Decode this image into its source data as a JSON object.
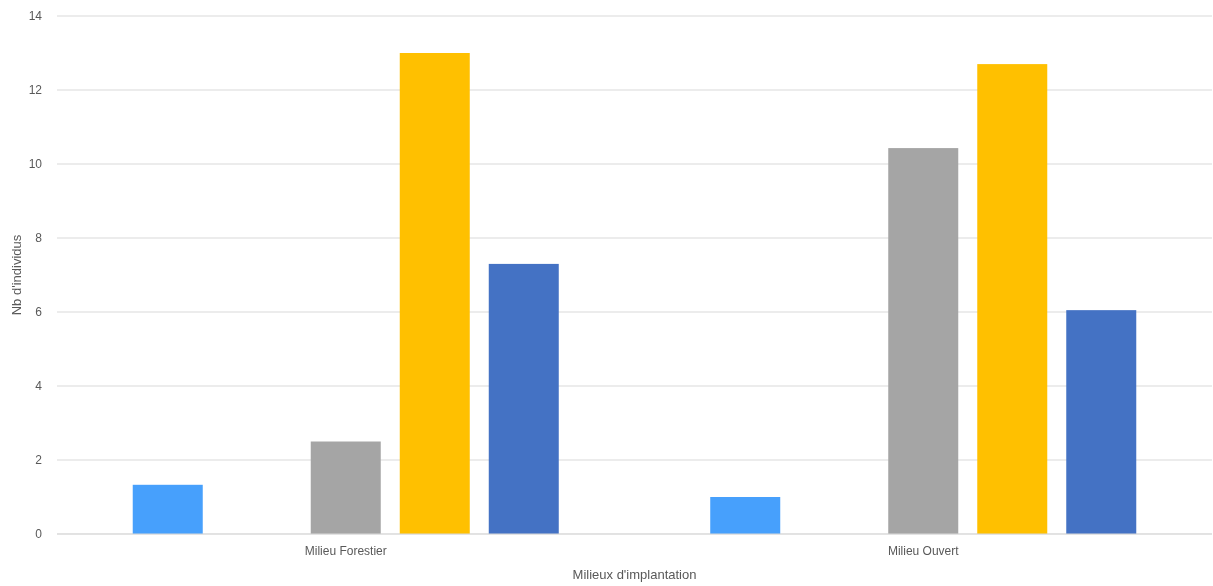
{
  "chart_data": {
    "type": "bar",
    "xlabel": "Milieux d'implantation",
    "ylabel": "Nb d'individus",
    "categories": [
      "Milieu Forestier",
      "Milieu Ouvert"
    ],
    "series": [
      {
        "color": "#47a0fc",
        "values": [
          1.33,
          1.0
        ]
      },
      {
        "values": [
          null,
          null
        ]
      },
      {
        "color": "#a5a5a5",
        "values": [
          2.5,
          10.43
        ]
      },
      {
        "color": "#ffc000",
        "values": [
          13,
          12.7
        ]
      },
      {
        "color": "#4472c4",
        "values": [
          7.3,
          6.05
        ]
      }
    ],
    "ylim": [
      0,
      14
    ],
    "yticks": [
      0,
      2,
      4,
      6,
      8,
      10,
      12,
      14
    ],
    "grid": "y"
  }
}
